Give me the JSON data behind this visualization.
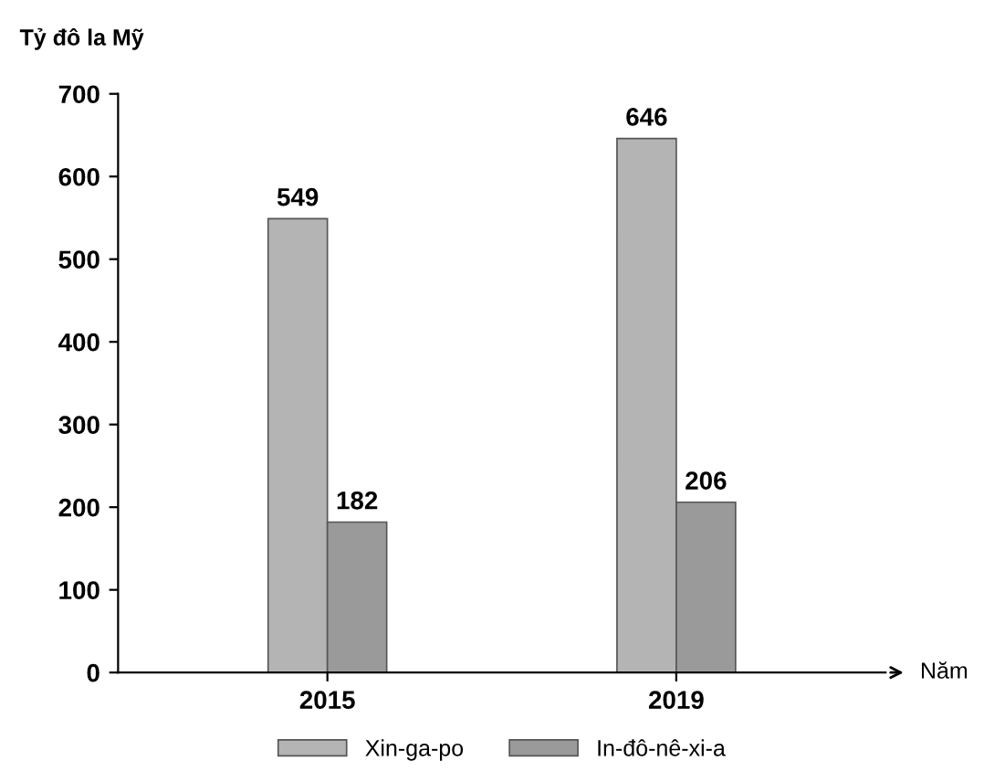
{
  "chart_data": {
    "type": "bar",
    "ylabel": "Tỷ đô la Mỹ",
    "xlabel": "Năm",
    "categories": [
      "2015",
      "2019"
    ],
    "series": [
      {
        "name": "Xin-ga-po",
        "color": "#b4b4b4",
        "values": [
          549,
          646
        ]
      },
      {
        "name": "In-đô-nê-xi-a",
        "color": "#9a9a9a",
        "values": [
          182,
          206
        ]
      }
    ],
    "ylim": [
      0,
      700
    ],
    "yticks": [
      0,
      100,
      200,
      300,
      400,
      500,
      600,
      700
    ],
    "data_labels": true,
    "grid": false,
    "legend": "bottom"
  }
}
